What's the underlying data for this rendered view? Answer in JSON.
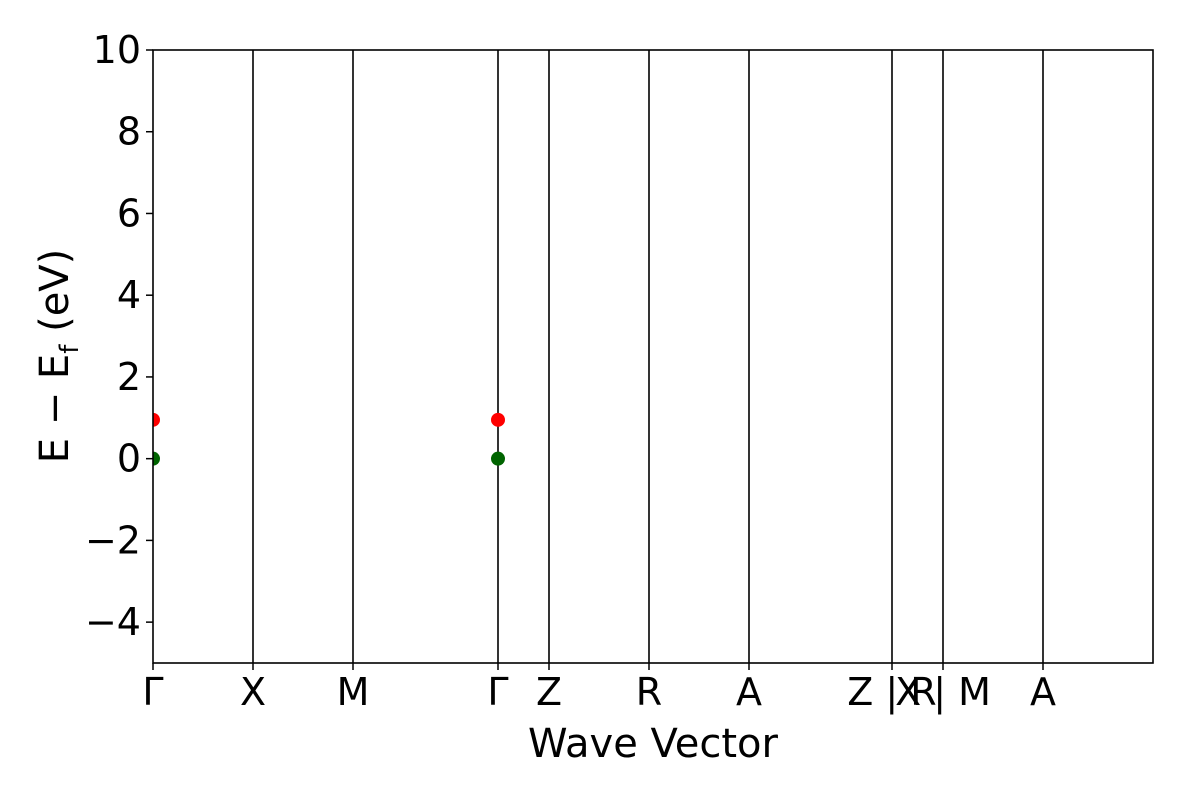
{
  "chart_data": {
    "type": "line",
    "title": "",
    "xlabel": "Wave Vector",
    "ylabel": "E − E",
    "ylabel_sub": "f",
    "ylabel_unit": " (eV)",
    "ylim": [
      -5,
      10
    ],
    "yticks": [
      -4,
      -2,
      0,
      2,
      4,
      6,
      8,
      10
    ],
    "ytick_labels": [
      "−4",
      "−2",
      "0",
      "2",
      "4",
      "6",
      "8",
      "10"
    ],
    "xlim": [
      0,
      10
    ],
    "kpoints": [
      {
        "label": "Γ",
        "x": 0
      },
      {
        "label": "X",
        "x": 1
      },
      {
        "label": "M",
        "x": 2
      },
      {
        "label": "Γ",
        "x": 3.45
      },
      {
        "label": "Z",
        "x": 3.96
      },
      {
        "label": "R",
        "x": 4.96
      },
      {
        "label": "A",
        "x": 5.96
      },
      {
        "label": "Z | R",
        "x": 7.39
      },
      {
        "label": "X | M",
        "x": 7.9
      },
      {
        "label": "A",
        "x": 8.9
      }
    ],
    "x_boundaries": [
      0,
      1,
      2,
      3.45,
      3.96,
      4.96,
      5.96,
      7.39,
      7.9,
      8.9
    ],
    "colors": {
      "up": "#ff0000",
      "down": "#0000ff",
      "cbm": "#ff0000",
      "vbm": "#006400",
      "axis": "#000000"
    },
    "series": [],
    "markers": [
      {
        "type": "CBM",
        "x": 0,
        "y": 0.95
      },
      {
        "type": "CBM",
        "x": 3.45,
        "y": 0.95
      },
      {
        "type": "VBM",
        "x": 0,
        "y": 0
      },
      {
        "type": "VBM",
        "x": 3.45,
        "y": 0
      }
    ]
  }
}
